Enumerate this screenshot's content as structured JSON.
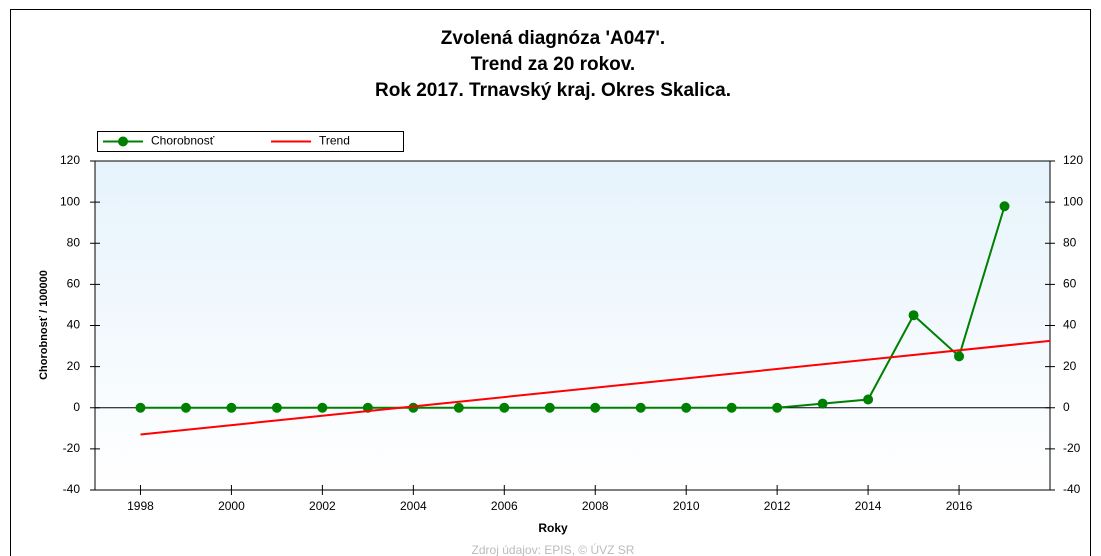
{
  "chart_data": {
    "type": "line",
    "title": [
      "Zvolená diagnóza 'A047'.",
      "Trend za 20 rokov.",
      "Rok 2017. Trnavský kraj. Okres Skalica."
    ],
    "x_label": "Roky",
    "y_label": "Chorobnosť / 100000",
    "footer": "Zdroj údajov: EPIS, © ÚVZ SR",
    "x": [
      1998,
      1999,
      2000,
      2001,
      2002,
      2003,
      2004,
      2005,
      2006,
      2007,
      2008,
      2009,
      2010,
      2011,
      2012,
      2013,
      2014,
      2015,
      2016,
      2017
    ],
    "series": [
      {
        "name": "Chorobnosť",
        "color": "#008000",
        "values": [
          0,
          0,
          0,
          0,
          0,
          0,
          0,
          0,
          0,
          0,
          0,
          0,
          0,
          0,
          0,
          2,
          4,
          45,
          25,
          98
        ]
      },
      {
        "name": "Trend",
        "color": "#ff0000",
        "x": [
          1998,
          2018
        ],
        "values": [
          -13,
          32.5
        ]
      }
    ],
    "xlim": [
      1997,
      2018
    ],
    "xticks": [
      1998,
      2000,
      2002,
      2004,
      2006,
      2008,
      2010,
      2012,
      2014,
      2016
    ],
    "ylim": [
      -40,
      120
    ],
    "yticks": [
      -40,
      -20,
      0,
      20,
      40,
      60,
      80,
      100,
      120
    ],
    "y2lim": [
      -40,
      120
    ],
    "y2ticks": [
      -40,
      -20,
      0,
      20,
      40,
      60,
      80,
      100,
      120
    ],
    "legend": "top-left"
  }
}
